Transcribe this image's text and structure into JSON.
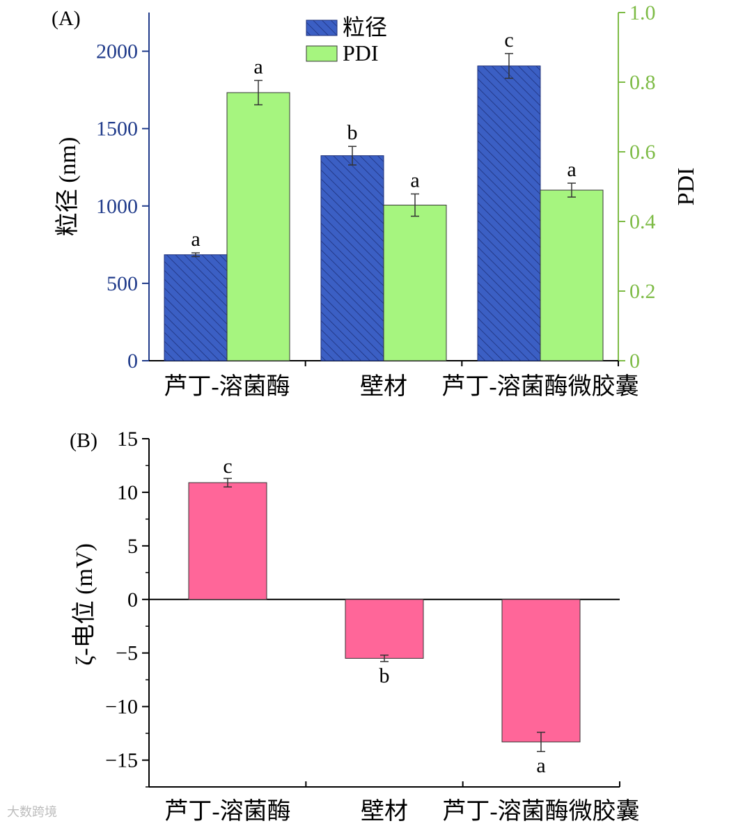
{
  "chart_data": [
    {
      "panel": "(A)",
      "type": "bar",
      "categories": [
        "芦丁-溶菌酶",
        "壁材",
        "芦丁-溶菌酶微胶囊"
      ],
      "series": [
        {
          "name": "粒径",
          "axis": "left",
          "values": [
            685,
            1325,
            1905
          ],
          "errors": [
            12,
            60,
            80
          ],
          "significance": [
            "a",
            "b",
            "c"
          ],
          "color": "#3b5fc4"
        },
        {
          "name": "PDI",
          "axis": "right",
          "values": [
            0.77,
            0.447,
            0.49
          ],
          "errors": [
            0.035,
            0.032,
            0.02
          ],
          "significance": [
            "a",
            "a",
            "a"
          ],
          "color": "#a6f57f"
        }
      ],
      "ylabel": "粒径 (nm)",
      "ylim": [
        0,
        2250
      ],
      "yticks": [
        "0",
        "500",
        "1000",
        "1500",
        "2000"
      ],
      "y2label": "PDI",
      "y2lim": [
        0,
        1.0
      ],
      "y2ticks": [
        "0",
        "0.2",
        "0.4",
        "0.6",
        "0.8",
        "1.0"
      ],
      "legend": "top-center",
      "left_axis_color": "#1f3a8a",
      "right_axis_color": "#7dbb45"
    },
    {
      "panel": "(B)",
      "type": "bar",
      "categories": [
        "芦丁-溶菌酶",
        "壁材",
        "芦丁-溶菌酶微胶囊"
      ],
      "series": [
        {
          "values": [
            10.9,
            -5.5,
            -13.3
          ],
          "errors": [
            0.4,
            0.3,
            0.9
          ],
          "significance": [
            "c",
            "b",
            "a"
          ],
          "color": "#ff6699"
        }
      ],
      "ylabel": "ζ-电位 (mV)",
      "ylim": [
        -17.5,
        15
      ],
      "yticks": [
        "15",
        "10",
        "5",
        "0",
        "−5",
        "−10",
        "−15"
      ]
    }
  ],
  "watermark": "大数跨境"
}
